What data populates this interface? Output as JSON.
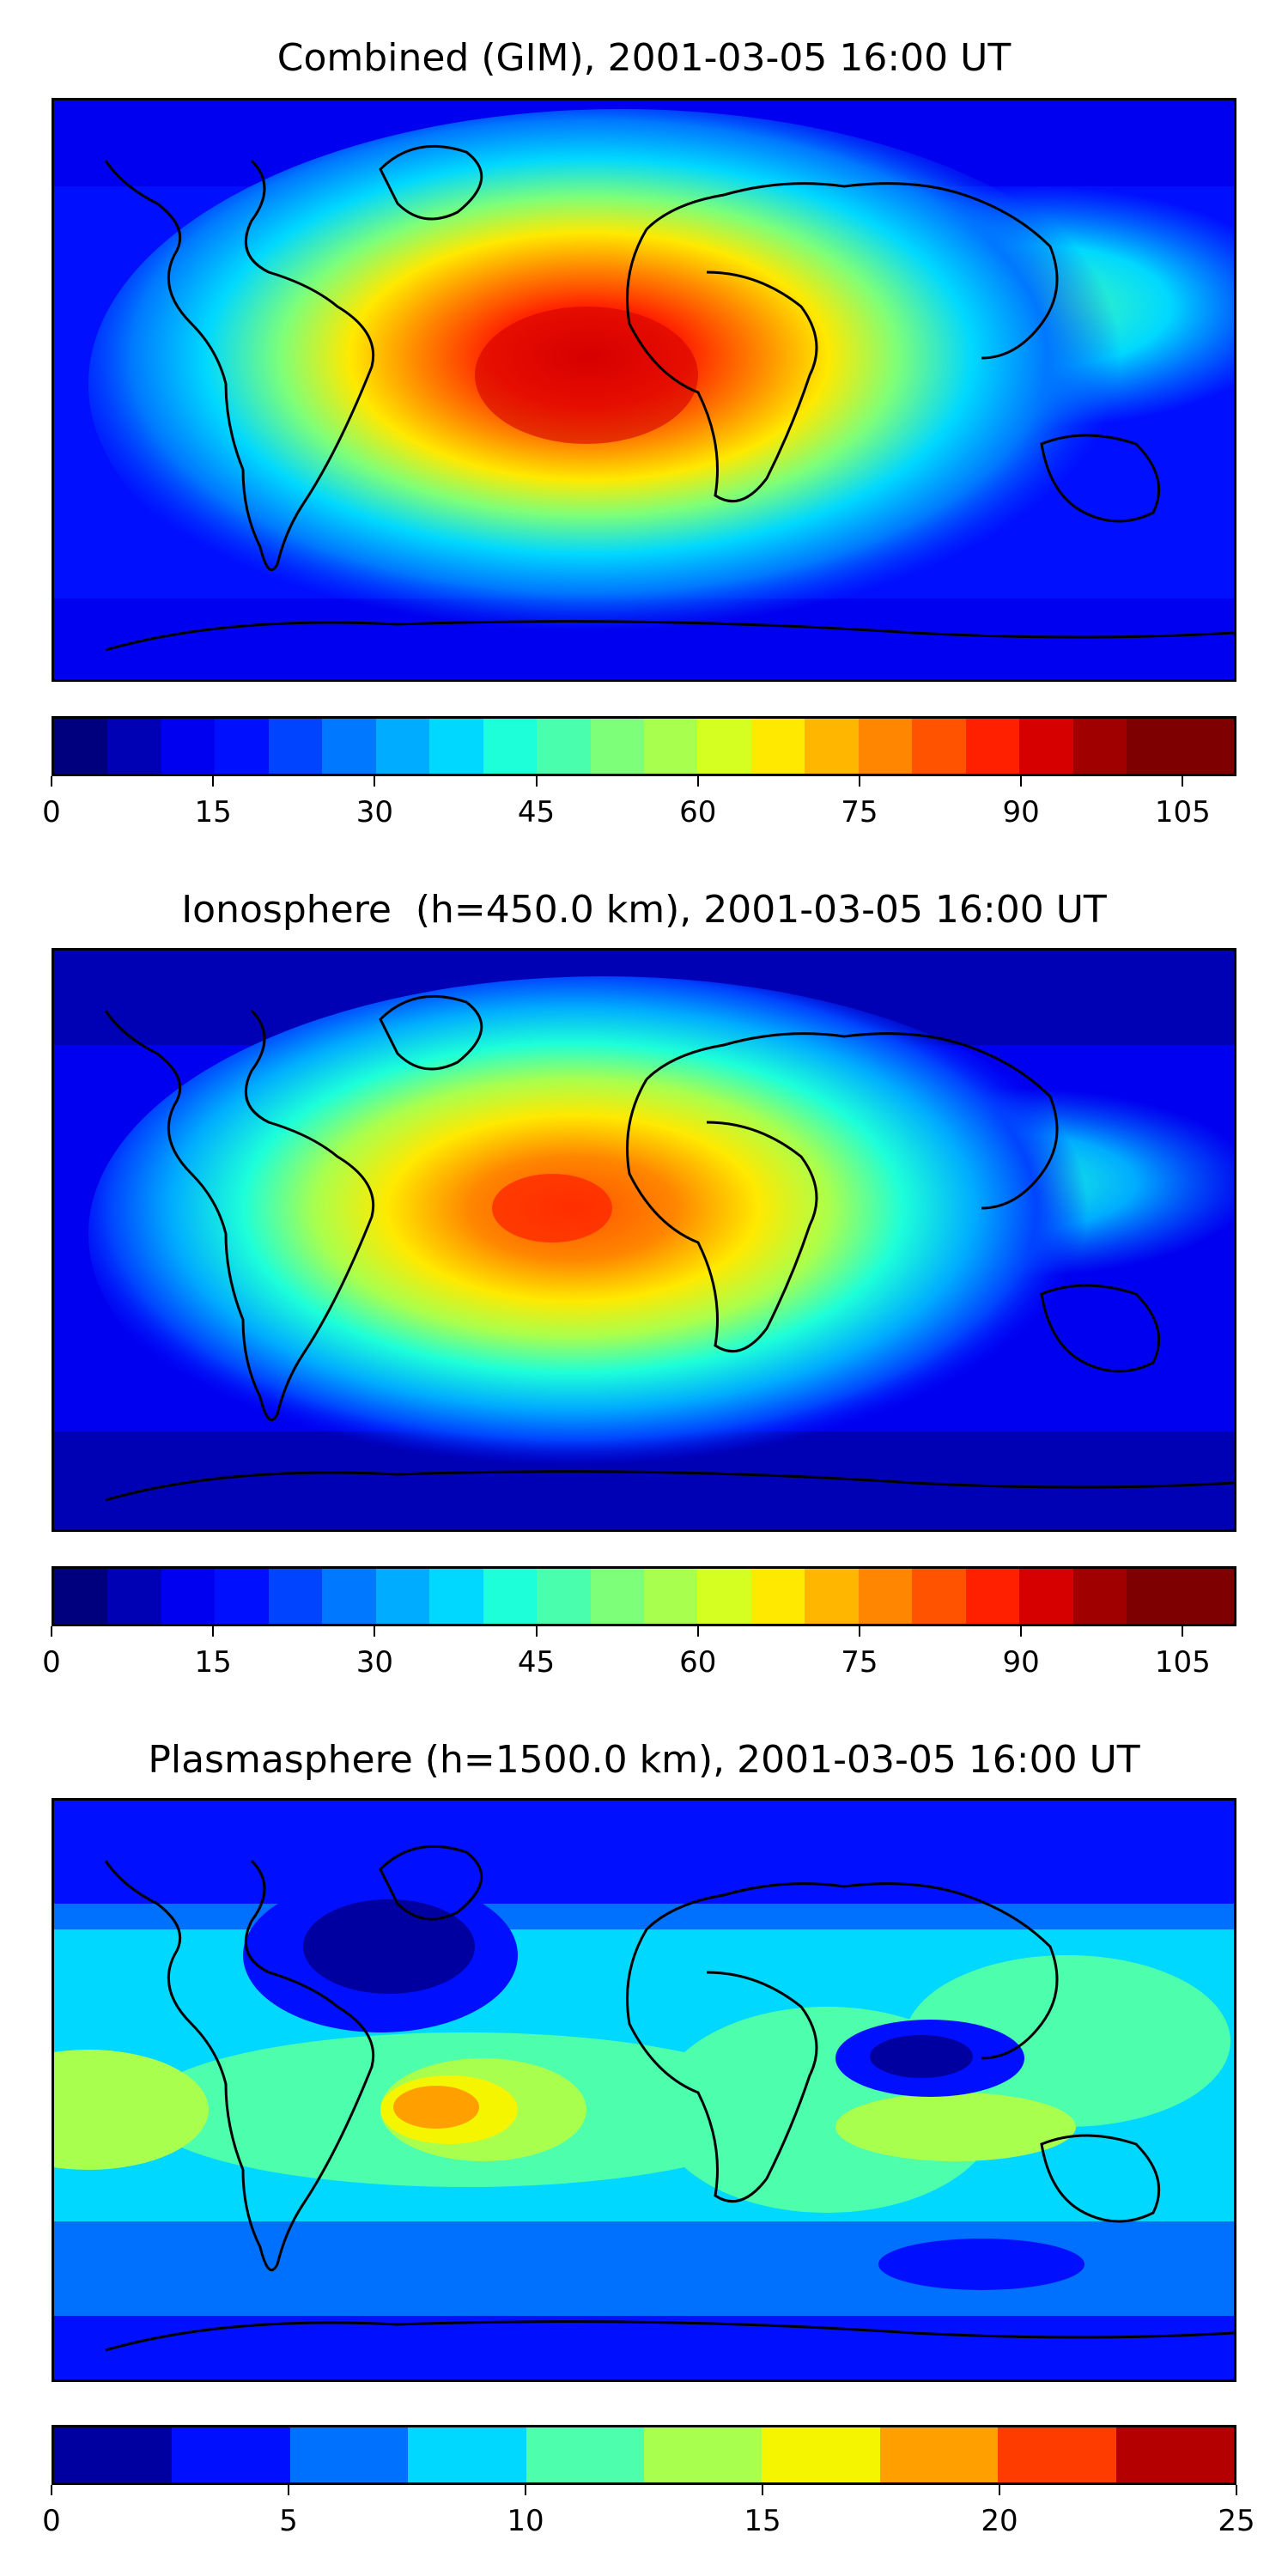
{
  "panels": [
    {
      "id": "combined",
      "title": "Combined (GIM), 2001-03-05 16:00 UT",
      "colorbar": {
        "min": 0,
        "max": 110,
        "step": 5,
        "tick_labels": [
          "0",
          "15",
          "30",
          "45",
          "60",
          "75",
          "90",
          "105"
        ],
        "colors": [
          "#00007f",
          "#0000b4",
          "#0000f0",
          "#0010ff",
          "#0044ff",
          "#0078ff",
          "#00acff",
          "#00d8ff",
          "#1dffd9",
          "#49ffad",
          "#7dff79",
          "#a9ff4d",
          "#d5ff21",
          "#ffe900",
          "#ffb600",
          "#ff8600",
          "#ff5300",
          "#ff2000",
          "#d60000",
          "#a00000",
          "#7f0000",
          "#7f0000"
        ]
      }
    },
    {
      "id": "ionosphere",
      "title": "Ionosphere  (h=450.0 km), 2001-03-05 16:00 UT",
      "colorbar": {
        "min": 0,
        "max": 110,
        "step": 5,
        "tick_labels": [
          "0",
          "15",
          "30",
          "45",
          "60",
          "75",
          "90",
          "105"
        ],
        "colors": [
          "#00007f",
          "#0000b4",
          "#0000f0",
          "#0010ff",
          "#0044ff",
          "#0078ff",
          "#00acff",
          "#00d8ff",
          "#1dffd9",
          "#49ffad",
          "#7dff79",
          "#a9ff4d",
          "#d5ff21",
          "#ffe900",
          "#ffb600",
          "#ff8600",
          "#ff5300",
          "#ff2000",
          "#d60000",
          "#a00000",
          "#7f0000",
          "#7f0000"
        ]
      }
    },
    {
      "id": "plasmasphere",
      "title": "Plasmasphere (h=1500.0 km), 2001-03-05 16:00 UT",
      "colorbar": {
        "min": 0,
        "max": 25,
        "step": 2.5,
        "tick_labels": [
          "0",
          "5",
          "10",
          "15",
          "20",
          "25"
        ],
        "colors": [
          "#0000a0",
          "#0010ff",
          "#0070ff",
          "#00d8ff",
          "#4dffad",
          "#a9ff4d",
          "#f5f500",
          "#ffa000",
          "#ff3c00",
          "#b40000"
        ]
      }
    }
  ]
}
